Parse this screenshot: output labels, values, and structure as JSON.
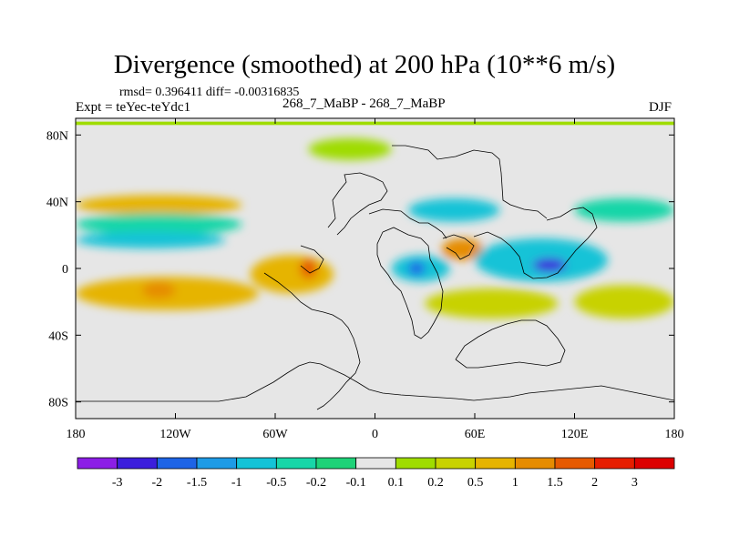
{
  "figure": {
    "title": "Divergence (smoothed) at 200 hPa (10**6 m/s)",
    "stats_line": "rmsd= 0.396411 diff= -0.00316835",
    "expt_label": "Expt = teYec-teYdc1",
    "runs_label": "268_7_MaBP - 268_7_MaBP",
    "season_label": "DJF"
  },
  "chart_data": {
    "type": "heatmap",
    "title": "Divergence (smoothed) at 200 hPa (10**6 m/s)",
    "variable": "divergence difference",
    "units": "10**6 m/s",
    "pressure_level_hPa": 200,
    "season": "DJF",
    "experiment": "teYec-teYdc1",
    "comparison": "268_7_MaBP - 268_7_MaBP",
    "rmsd": 0.396411,
    "diff": -0.00316835,
    "x": {
      "range": [
        -180,
        180
      ],
      "ticks": [
        -180,
        -120,
        -60,
        0,
        60,
        120,
        180
      ],
      "tick_labels": [
        "180",
        "120W",
        "60W",
        "0",
        "60E",
        "120E",
        "180"
      ]
    },
    "y": {
      "range": [
        -90,
        90
      ],
      "ticks": [
        80,
        40,
        0,
        -40,
        -80
      ],
      "tick_labels": [
        "80N",
        "40N",
        "0",
        "40S",
        "80S"
      ]
    },
    "colorbar": {
      "levels": [
        -3,
        -2,
        -1.5,
        -1,
        -0.5,
        -0.2,
        -0.1,
        0.1,
        0.2,
        0.5,
        1,
        1.5,
        2,
        3
      ],
      "labels": [
        "-3",
        "-2",
        "-1.5",
        "-1",
        "-0.5",
        "-0.2",
        "-0.1",
        "0.1",
        "0.2",
        "0.5",
        "1",
        "1.5",
        "2",
        "3"
      ],
      "colors": [
        "#8c1ee6",
        "#3c1edc",
        "#1e64e6",
        "#1e9be6",
        "#14c3d7",
        "#18d6a8",
        "#1ed278",
        "#e6e6e6",
        "#9fdc00",
        "#c8d200",
        "#e6b400",
        "#e68c00",
        "#e65a00",
        "#e61e00",
        "#dc0000"
      ]
    },
    "features": [
      {
        "lon": [
          -180,
          180
        ],
        "lat": [
          86,
          88
        ],
        "value": 0.15,
        "note": "thin positive band near north edge"
      },
      {
        "lon": [
          -40,
          10
        ],
        "lat": [
          65,
          78
        ],
        "value": 0.15
      },
      {
        "lon": [
          -180,
          -80
        ],
        "lat": [
          32,
          44
        ],
        "value": 0.6
      },
      {
        "lon": [
          -180,
          -80
        ],
        "lat": [
          20,
          33
        ],
        "value": -0.4
      },
      {
        "lon": [
          -180,
          -90
        ],
        "lat": [
          12,
          22
        ],
        "value": -0.8
      },
      {
        "lon": [
          -180,
          -70
        ],
        "lat": [
          -25,
          -5
        ],
        "value": 0.9
      },
      {
        "lon": [
          -140,
          -120
        ],
        "lat": [
          -18,
          -8
        ],
        "value": 1.3
      },
      {
        "lon": [
          -75,
          -25
        ],
        "lat": [
          -15,
          8
        ],
        "value": 0.8
      },
      {
        "lon": [
          -45,
          -35
        ],
        "lat": [
          -6,
          6
        ],
        "value": 1.6
      },
      {
        "lon": [
          10,
          45
        ],
        "lat": [
          -8,
          8
        ],
        "value": -0.8
      },
      {
        "lon": [
          20,
          30
        ],
        "lat": [
          -4,
          4
        ],
        "value": -1.6
      },
      {
        "lon": [
          40,
          65
        ],
        "lat": [
          5,
          18
        ],
        "value": 1.2
      },
      {
        "lon": [
          60,
          140
        ],
        "lat": [
          -8,
          18
        ],
        "value": -0.7
      },
      {
        "lon": [
          95,
          115
        ],
        "lat": [
          -2,
          6
        ],
        "value": -2.2
      },
      {
        "lon": [
          120,
          180
        ],
        "lat": [
          28,
          42
        ],
        "value": -0.3
      },
      {
        "lon": [
          20,
          75
        ],
        "lat": [
          28,
          42
        ],
        "value": -0.5
      },
      {
        "lon": [
          30,
          110
        ],
        "lat": [
          -30,
          -12
        ],
        "value": 0.5
      },
      {
        "lon": [
          120,
          180
        ],
        "lat": [
          -30,
          -10
        ],
        "value": 0.5
      }
    ]
  }
}
